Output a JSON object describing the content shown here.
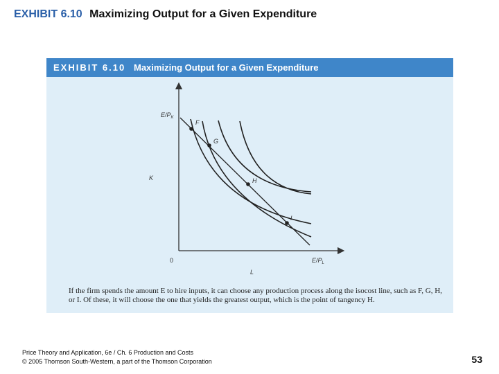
{
  "slide": {
    "exhibit_number": "EXHIBIT 6.10",
    "title": "Maximizing Output for a Given Expenditure"
  },
  "exhibit": {
    "header_number": "EXHIBIT 6.10",
    "header_title": "Maximizing Output for a Given Expenditure",
    "labels": {
      "y_intercept": "E/P",
      "y_intercept_sub": "K",
      "x_intercept": "E/P",
      "x_intercept_sub": "L",
      "y_axis": "K",
      "x_axis": "L",
      "origin": "0",
      "point_f": "F",
      "point_g": "G",
      "point_h": "H",
      "point_i": "I"
    },
    "caption": "If the firm spends the amount E to hire inputs, it can choose any production process along the isocost line, such as F, G, H, or I. Of these, it will choose the one that yields the greatest output, which is the point of tangency H."
  },
  "footer": {
    "line1": "Price Theory and Application, 6e / Ch. 6 Production and Costs",
    "line2": "© 2005 Thomson South-Western, a part of the Thomson Corporation"
  },
  "page_number": "53",
  "colors": {
    "header_bg": "#3f86c9",
    "panel_bg": "#dfeef8",
    "title_accent": "#2a5fa8"
  }
}
